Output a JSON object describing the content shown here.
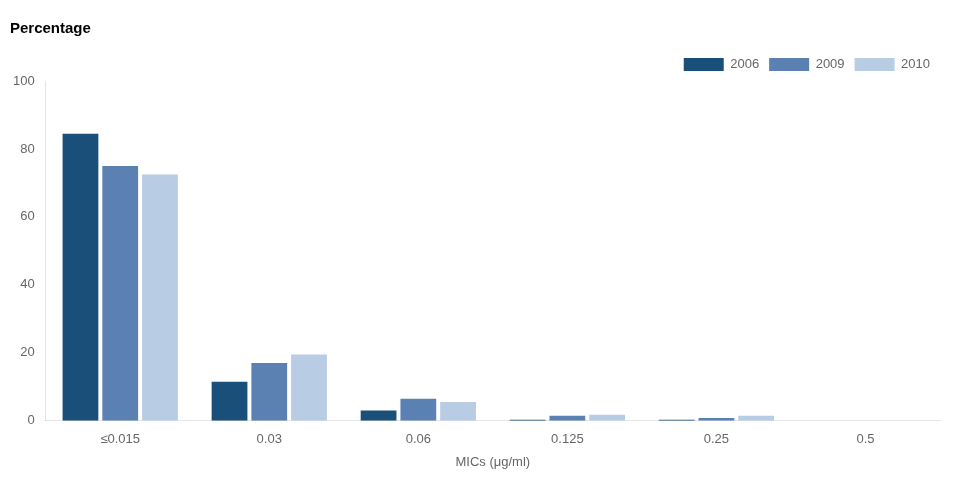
{
  "chart_data": {
    "type": "bar",
    "title": "Percentage",
    "xlabel": "MICs (μg/ml)",
    "categories": [
      "≤0.015",
      "0.03",
      "0.06",
      "0.125",
      "0.25",
      "0.5"
    ],
    "series": [
      {
        "name": "2006",
        "color": "#1a4f7a",
        "values": [
          84.5,
          11.5,
          3.0,
          0.3,
          0.3,
          0.0
        ]
      },
      {
        "name": "2009",
        "color": "#5b80b2",
        "values": [
          75.0,
          17.0,
          6.5,
          1.5,
          0.8,
          0.0
        ]
      },
      {
        "name": "2010",
        "color": "#b8cce4",
        "values": [
          72.5,
          19.5,
          5.5,
          1.8,
          1.5,
          0.0
        ]
      }
    ],
    "ylim": [
      0,
      100
    ],
    "yticks": [
      0,
      20,
      40,
      60,
      80,
      100
    ],
    "grid": false,
    "legend": "upper right"
  }
}
